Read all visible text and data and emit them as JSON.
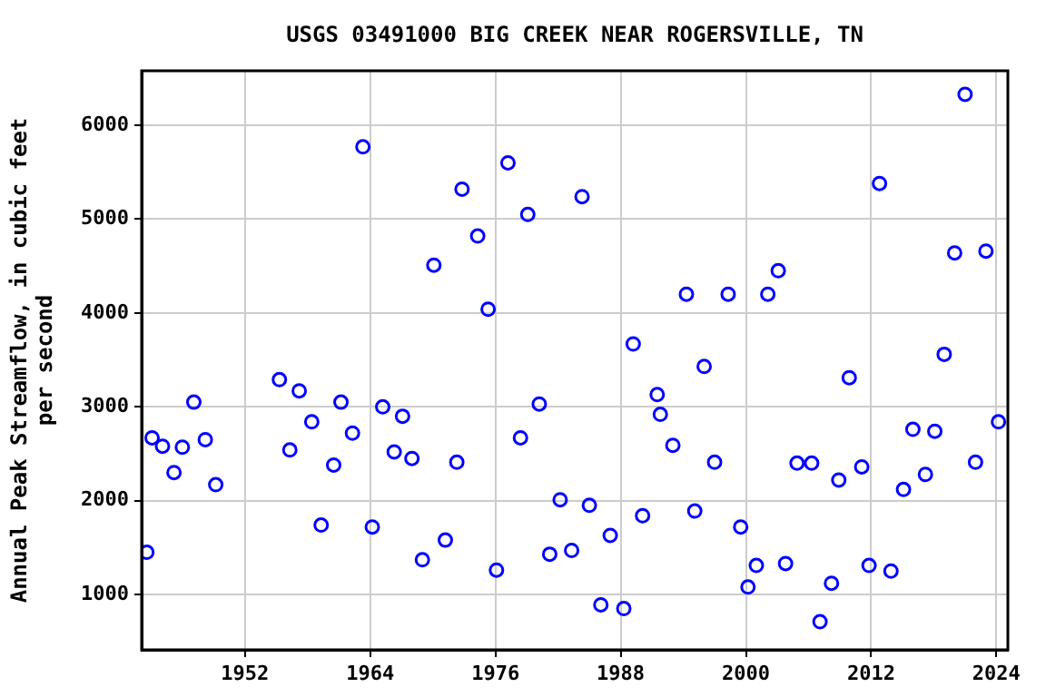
{
  "chart_data": {
    "type": "scatter",
    "title": "USGS 03491000 BIG CREEK NEAR ROGERSVILLE, TN",
    "ylabel": "Annual Peak Streamflow, in cubic feet\nper second",
    "x": [
      1942.6,
      1943.1,
      1944.1,
      1945.2,
      1946.0,
      1947.1,
      1948.2,
      1949.2,
      1955.3,
      1956.3,
      1957.2,
      1958.4,
      1959.3,
      1960.5,
      1961.2,
      1962.3,
      1963.3,
      1964.2,
      1965.2,
      1966.3,
      1967.1,
      1968.0,
      1969.0,
      1970.1,
      1971.2,
      1972.3,
      1972.8,
      1974.3,
      1975.3,
      1976.1,
      1977.2,
      1978.4,
      1979.1,
      1980.2,
      1981.2,
      1982.2,
      1983.3,
      1984.3,
      1985.0,
      1986.1,
      1987.0,
      1988.3,
      1989.2,
      1990.1,
      1991.5,
      1991.8,
      1993.0,
      1994.3,
      1995.1,
      1996.0,
      1997.0,
      1998.3,
      1999.5,
      2000.2,
      2001.0,
      2002.1,
      2003.1,
      2003.8,
      2004.9,
      2006.3,
      2007.1,
      2008.2,
      2008.9,
      2009.9,
      2011.1,
      2011.8,
      2012.8,
      2013.9,
      2015.1,
      2016.0,
      2017.2,
      2018.1,
      2019.0,
      2020.0,
      2021.0,
      2022.0,
      2023.0,
      2024.2
    ],
    "values": [
      1450,
      2670,
      2580,
      2300,
      2570,
      3050,
      2650,
      2170,
      3290,
      2540,
      3170,
      2840,
      1740,
      2380,
      3050,
      2720,
      5770,
      1720,
      3000,
      2520,
      2900,
      2450,
      1370,
      4510,
      1580,
      2410,
      5320,
      4820,
      4040,
      1260,
      5600,
      2670,
      5050,
      3030,
      1430,
      2010,
      1470,
      5240,
      1950,
      890,
      1630,
      850,
      3670,
      1840,
      3130,
      2920,
      2590,
      4200,
      1890,
      3430,
      2410,
      4200,
      1720,
      1080,
      1310,
      4200,
      4450,
      1330,
      2400,
      2400,
      710,
      1120,
      2220,
      3310,
      2360,
      1310,
      5380,
      1250,
      2120,
      2760,
      2280,
      2740,
      3560,
      4640,
      6330,
      2410,
      4660,
      2840
    ],
    "color": "#0000ff",
    "marker": "circle",
    "xlim": [
      1942.1,
      2025.1
    ],
    "xticks": [
      1952,
      1964,
      1976,
      1988,
      2000,
      2012,
      2024
    ],
    "ylim": [
      411,
      6581
    ],
    "yticks": [
      1000,
      2000,
      3000,
      4000,
      5000,
      6000
    ],
    "grid": true,
    "legend": false
  }
}
